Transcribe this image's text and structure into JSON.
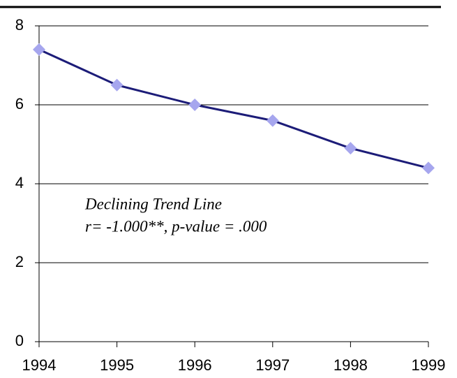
{
  "chart_data": {
    "type": "line",
    "x": [
      1994,
      1995,
      1996,
      1997,
      1998,
      1999
    ],
    "series": [
      {
        "values": [
          7.4,
          6.5,
          6.0,
          5.6,
          4.9,
          4.4
        ],
        "color": "#1c1c78",
        "marker_color": "#a6a6ee"
      }
    ],
    "xlim": [
      1994,
      1999
    ],
    "xticks": [
      1994,
      1995,
      1996,
      1997,
      1998,
      1999
    ],
    "ylim": [
      0,
      8
    ],
    "yticks": [
      0,
      2,
      4,
      6,
      8
    ],
    "grid": true,
    "annotations": [
      "Declining Trend Line",
      "r= -1.000**, p-value = .000"
    ]
  }
}
